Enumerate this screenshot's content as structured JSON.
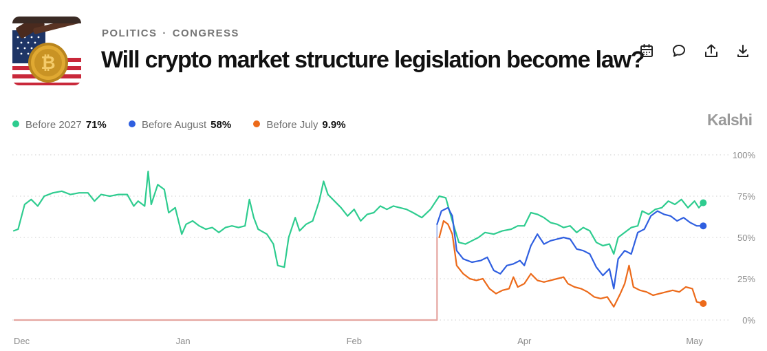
{
  "header": {
    "category": "POLITICS",
    "separator": "·",
    "subcategory": "CONGRESS",
    "title": "Will crypto market structure legislation become law?"
  },
  "actions": [
    {
      "name": "calendar-icon"
    },
    {
      "name": "comment-icon"
    },
    {
      "name": "share-icon"
    },
    {
      "name": "download-icon"
    }
  ],
  "brand": "Kalshi",
  "legend": [
    {
      "label": "Before 2027",
      "value": "71%",
      "color": "#2ecc8f"
    },
    {
      "label": "Before August",
      "value": "58%",
      "color": "#2f5fe0"
    },
    {
      "label": "Before July",
      "value": "9.9%",
      "color": "#ec6a1a"
    }
  ],
  "chart_data": {
    "type": "line",
    "x_tick_labels": [
      "Dec",
      "Jan",
      "Feb",
      "Apr",
      "May"
    ],
    "x_tick_positions": [
      0,
      3.88,
      7.8,
      11.7,
      15.6
    ],
    "x_range": [
      0,
      16
    ],
    "y_tick_labels": [
      "100%",
      "75%",
      "50%",
      "25%",
      "0%"
    ],
    "y_tick_values": [
      100,
      75,
      50,
      25,
      0
    ],
    "y_range": [
      0,
      100
    ],
    "grid": "dotted horizontal",
    "pre_listing_color": "#e5a5a0",
    "series": [
      {
        "name": "Before 2027",
        "color": "#2ecc8f",
        "points": [
          [
            0.0,
            54
          ],
          [
            0.1,
            55
          ],
          [
            0.25,
            70
          ],
          [
            0.4,
            73
          ],
          [
            0.55,
            69
          ],
          [
            0.7,
            75
          ],
          [
            0.9,
            77
          ],
          [
            1.1,
            78
          ],
          [
            1.3,
            76
          ],
          [
            1.5,
            77
          ],
          [
            1.7,
            77
          ],
          [
            1.85,
            72
          ],
          [
            2.0,
            76
          ],
          [
            2.2,
            75
          ],
          [
            2.4,
            76
          ],
          [
            2.6,
            76
          ],
          [
            2.75,
            69
          ],
          [
            2.85,
            72
          ],
          [
            3.0,
            69
          ],
          [
            3.08,
            90
          ],
          [
            3.15,
            70
          ],
          [
            3.3,
            82
          ],
          [
            3.45,
            79
          ],
          [
            3.55,
            65
          ],
          [
            3.7,
            68
          ],
          [
            3.85,
            52
          ],
          [
            3.95,
            58
          ],
          [
            4.1,
            60
          ],
          [
            4.25,
            57
          ],
          [
            4.4,
            55
          ],
          [
            4.55,
            56
          ],
          [
            4.7,
            53
          ],
          [
            4.85,
            56
          ],
          [
            5.0,
            57
          ],
          [
            5.15,
            56
          ],
          [
            5.3,
            57
          ],
          [
            5.4,
            73
          ],
          [
            5.5,
            62
          ],
          [
            5.6,
            55
          ],
          [
            5.8,
            52
          ],
          [
            5.95,
            46
          ],
          [
            6.05,
            33
          ],
          [
            6.2,
            32
          ],
          [
            6.3,
            50
          ],
          [
            6.45,
            62
          ],
          [
            6.55,
            54
          ],
          [
            6.7,
            58
          ],
          [
            6.85,
            60
          ],
          [
            7.0,
            72
          ],
          [
            7.1,
            84
          ],
          [
            7.2,
            76
          ],
          [
            7.35,
            72
          ],
          [
            7.5,
            68
          ],
          [
            7.65,
            63
          ],
          [
            7.8,
            67
          ],
          [
            7.95,
            60
          ],
          [
            8.1,
            64
          ],
          [
            8.25,
            65
          ],
          [
            8.4,
            69
          ],
          [
            8.55,
            67
          ],
          [
            8.7,
            69
          ],
          [
            8.85,
            68
          ],
          [
            9.0,
            67
          ],
          [
            9.15,
            65
          ],
          [
            9.35,
            62
          ],
          [
            9.55,
            67
          ],
          [
            9.75,
            75
          ],
          [
            9.9,
            74
          ],
          [
            10.05,
            60
          ],
          [
            10.2,
            47
          ],
          [
            10.35,
            46
          ],
          [
            10.5,
            48
          ],
          [
            10.65,
            50
          ],
          [
            10.8,
            53
          ],
          [
            11.0,
            52
          ],
          [
            11.2,
            54
          ],
          [
            11.4,
            55
          ],
          [
            11.55,
            57
          ],
          [
            11.7,
            57
          ],
          [
            11.85,
            65
          ],
          [
            12.0,
            64
          ],
          [
            12.15,
            62
          ],
          [
            12.3,
            59
          ],
          [
            12.45,
            58
          ],
          [
            12.6,
            56
          ],
          [
            12.75,
            57
          ],
          [
            12.9,
            53
          ],
          [
            13.05,
            56
          ],
          [
            13.2,
            54
          ],
          [
            13.35,
            47
          ],
          [
            13.5,
            45
          ],
          [
            13.65,
            46
          ],
          [
            13.75,
            40
          ],
          [
            13.85,
            50
          ],
          [
            14.0,
            53
          ],
          [
            14.15,
            56
          ],
          [
            14.3,
            57
          ],
          [
            14.4,
            66
          ],
          [
            14.55,
            64
          ],
          [
            14.7,
            67
          ],
          [
            14.85,
            68
          ],
          [
            15.0,
            72
          ],
          [
            15.15,
            70
          ],
          [
            15.3,
            73
          ],
          [
            15.45,
            68
          ],
          [
            15.6,
            72
          ],
          [
            15.7,
            68
          ],
          [
            15.8,
            71
          ]
        ]
      },
      {
        "name": "Before August",
        "color": "#2f5fe0",
        "points": [
          [
            9.7,
            58
          ],
          [
            9.8,
            66
          ],
          [
            9.95,
            68
          ],
          [
            10.05,
            63
          ],
          [
            10.15,
            42
          ],
          [
            10.3,
            37
          ],
          [
            10.5,
            35
          ],
          [
            10.7,
            36
          ],
          [
            10.85,
            38
          ],
          [
            11.0,
            30
          ],
          [
            11.15,
            28
          ],
          [
            11.3,
            33
          ],
          [
            11.45,
            34
          ],
          [
            11.6,
            36
          ],
          [
            11.7,
            33
          ],
          [
            11.85,
            45
          ],
          [
            12.0,
            52
          ],
          [
            12.15,
            46
          ],
          [
            12.3,
            48
          ],
          [
            12.45,
            49
          ],
          [
            12.6,
            50
          ],
          [
            12.75,
            49
          ],
          [
            12.9,
            43
          ],
          [
            13.05,
            42
          ],
          [
            13.2,
            40
          ],
          [
            13.35,
            32
          ],
          [
            13.5,
            27
          ],
          [
            13.65,
            31
          ],
          [
            13.75,
            19
          ],
          [
            13.85,
            37
          ],
          [
            14.0,
            42
          ],
          [
            14.15,
            40
          ],
          [
            14.3,
            53
          ],
          [
            14.45,
            55
          ],
          [
            14.6,
            63
          ],
          [
            14.75,
            66
          ],
          [
            14.9,
            64
          ],
          [
            15.05,
            63
          ],
          [
            15.2,
            60
          ],
          [
            15.35,
            62
          ],
          [
            15.5,
            59
          ],
          [
            15.65,
            57
          ],
          [
            15.8,
            57
          ]
        ]
      },
      {
        "name": "Before July",
        "color": "#ec6a1a",
        "points": [
          [
            9.75,
            50
          ],
          [
            9.85,
            60
          ],
          [
            9.95,
            58
          ],
          [
            10.05,
            52
          ],
          [
            10.15,
            33
          ],
          [
            10.3,
            28
          ],
          [
            10.45,
            25
          ],
          [
            10.6,
            24
          ],
          [
            10.75,
            25
          ],
          [
            10.9,
            19
          ],
          [
            11.05,
            16
          ],
          [
            11.2,
            18
          ],
          [
            11.35,
            19
          ],
          [
            11.45,
            26
          ],
          [
            11.55,
            20
          ],
          [
            11.7,
            22
          ],
          [
            11.85,
            28
          ],
          [
            12.0,
            24
          ],
          [
            12.15,
            23
          ],
          [
            12.3,
            24
          ],
          [
            12.45,
            25
          ],
          [
            12.6,
            26
          ],
          [
            12.7,
            22
          ],
          [
            12.85,
            20
          ],
          [
            13.0,
            19
          ],
          [
            13.15,
            17
          ],
          [
            13.3,
            14
          ],
          [
            13.45,
            13
          ],
          [
            13.6,
            14
          ],
          [
            13.75,
            8
          ],
          [
            13.9,
            16
          ],
          [
            14.0,
            22
          ],
          [
            14.1,
            33
          ],
          [
            14.2,
            20
          ],
          [
            14.35,
            18
          ],
          [
            14.5,
            17
          ],
          [
            14.65,
            15
          ],
          [
            14.8,
            16
          ],
          [
            14.95,
            17
          ],
          [
            15.1,
            18
          ],
          [
            15.25,
            17
          ],
          [
            15.4,
            20
          ],
          [
            15.55,
            19
          ],
          [
            15.65,
            11
          ],
          [
            15.8,
            10
          ]
        ]
      }
    ]
  }
}
